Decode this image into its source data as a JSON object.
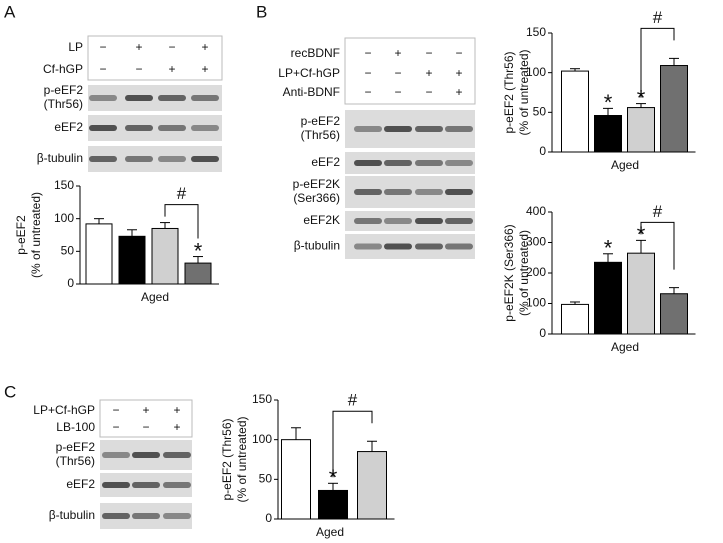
{
  "panel_labels": [
    "A",
    "B",
    "C"
  ],
  "blots": [
    {
      "conditions": [
        {
          "label": "LP",
          "signs": [
            "−",
            "+",
            "−",
            "+"
          ]
        },
        {
          "label": "Cf-hGP",
          "signs": [
            "−",
            "−",
            "+",
            "+"
          ]
        }
      ],
      "bands": [
        [
          "p-eEF2",
          "(Thr56)"
        ],
        [
          "eEF2"
        ],
        [
          "β-tubulin"
        ]
      ]
    },
    {
      "conditions": [
        {
          "label": "recBDNF",
          "signs": [
            "−",
            "+",
            "−",
            "−"
          ]
        },
        {
          "label": "LP+Cf-hGP",
          "signs": [
            "−",
            "−",
            "+",
            "+"
          ]
        },
        {
          "label": "Anti-BDNF",
          "signs": [
            "−",
            "−",
            "−",
            "+"
          ]
        }
      ],
      "bands": [
        [
          "p-eEF2",
          "(Thr56)"
        ],
        [
          "eEF2"
        ],
        [
          "p-eEF2K",
          "(Ser366)"
        ],
        [
          "eEF2K"
        ],
        [
          "β-tubulin"
        ]
      ]
    },
    {
      "conditions": [
        {
          "label": "LP+Cf-hGP",
          "signs": [
            "−",
            "+",
            "+"
          ]
        },
        {
          "label": "LB-100",
          "signs": [
            "−",
            "−",
            "+"
          ]
        }
      ],
      "bands": [
        [
          "p-eEF2",
          "(Thr56)"
        ],
        [
          "eEF2"
        ],
        [
          "β-tubulin"
        ]
      ]
    }
  ],
  "chart_data": [
    {
      "type": "bar",
      "ylabel": [
        "p-eEF2",
        "(% of untreated)"
      ],
      "xlabel": "Aged",
      "values": [
        92,
        73,
        85,
        32
      ],
      "errors": [
        8,
        10,
        9,
        10
      ],
      "colors": [
        "#ffffff",
        "#000000",
        "#d0d0d0",
        "#707070"
      ],
      "ylim": [
        0,
        150
      ],
      "yticks": [
        0,
        50,
        100,
        150
      ],
      "annotations": [
        {
          "text": "*",
          "bar": 3
        }
      ],
      "brackets": [
        {
          "text": "#",
          "from": 2,
          "to": 3
        }
      ]
    },
    {
      "type": "bar",
      "ylabel": [
        "p-eEF2 (Thr56)",
        "(% of untreated)"
      ],
      "xlabel": "Aged",
      "values": [
        102,
        46,
        56,
        109
      ],
      "errors": [
        3,
        9,
        5,
        9
      ],
      "colors": [
        "#ffffff",
        "#000000",
        "#d0d0d0",
        "#707070"
      ],
      "ylim": [
        0,
        150
      ],
      "yticks": [
        0,
        50,
        100,
        150
      ],
      "annotations": [
        {
          "text": "*",
          "bar": 1
        },
        {
          "text": "*",
          "bar": 2
        }
      ],
      "brackets": [
        {
          "text": "#",
          "from": 2,
          "to": 3
        }
      ]
    },
    {
      "type": "bar",
      "ylabel": [
        "p-eEF2K (Ser366)",
        "(% of untreated)"
      ],
      "xlabel": "Aged",
      "values": [
        97,
        235,
        265,
        132
      ],
      "errors": [
        8,
        28,
        42,
        20
      ],
      "colors": [
        "#ffffff",
        "#000000",
        "#d0d0d0",
        "#707070"
      ],
      "ylim": [
        0,
        400
      ],
      "yticks": [
        0,
        100,
        200,
        300,
        400
      ],
      "annotations": [
        {
          "text": "*",
          "bar": 1
        },
        {
          "text": "*",
          "bar": 2
        }
      ],
      "brackets": [
        {
          "text": "#",
          "from": 2,
          "to": 3
        }
      ]
    },
    {
      "type": "bar",
      "ylabel": [
        "p-eEF2 (Thr56)",
        "(% of untreated)"
      ],
      "xlabel": "Aged",
      "values": [
        100,
        36,
        85
      ],
      "errors": [
        15,
        9,
        13
      ],
      "colors": [
        "#ffffff",
        "#000000",
        "#d0d0d0"
      ],
      "ylim": [
        0,
        150
      ],
      "yticks": [
        0,
        50,
        100,
        150
      ],
      "annotations": [
        {
          "text": "*",
          "bar": 1
        }
      ],
      "brackets": [
        {
          "text": "#",
          "from": 1,
          "to": 2
        }
      ]
    }
  ]
}
